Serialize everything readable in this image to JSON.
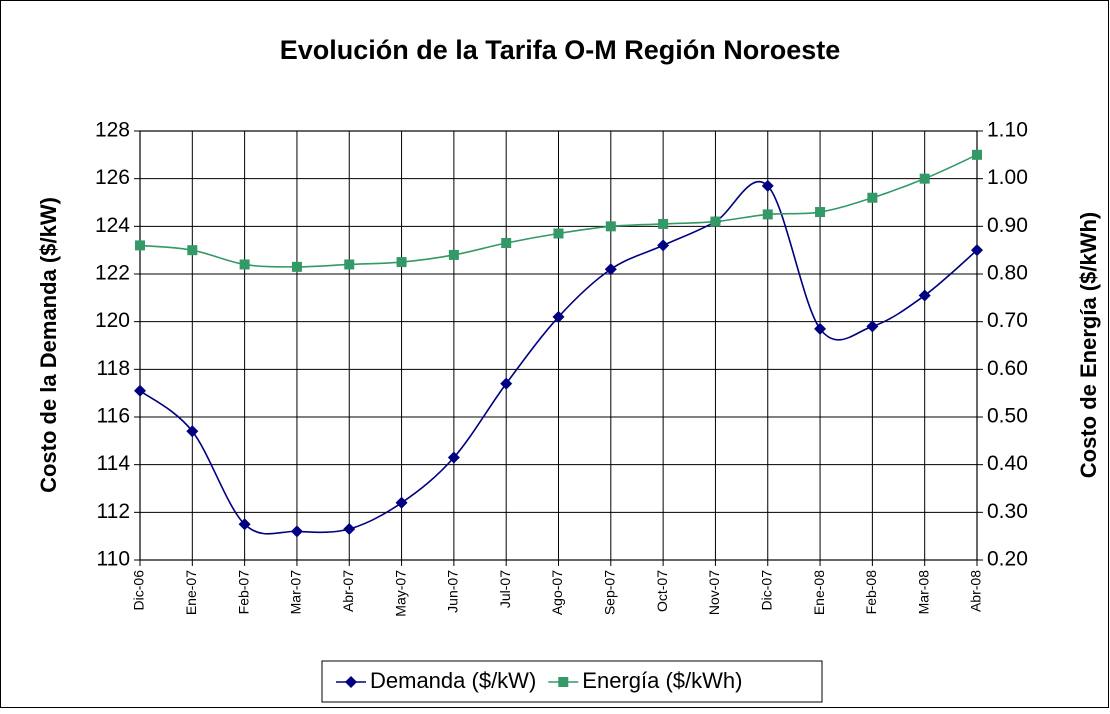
{
  "chart_data": {
    "type": "line",
    "title": "Evolución de la Tarifa O-M Región Noroeste",
    "y_label": "Costo de la Demanda ($/kW)",
    "y2_label": "Costo de Energía ($/kWh)",
    "categories": [
      "Dic-06",
      "Ene-07",
      "Feb-07",
      "Mar-07",
      "Abr-07",
      "May-07",
      "Jun-07",
      "Jul-07",
      "Ago-07",
      "Sep-07",
      "Oct-07",
      "Nov-07",
      "Dic-07",
      "Ene-08",
      "Feb-08",
      "Mar-08",
      "Abr-08"
    ],
    "series": [
      {
        "name": "Demanda ($/kW)",
        "color": "#000080",
        "marker": "diamond",
        "values": [
          117.1,
          115.4,
          111.5,
          111.2,
          111.3,
          112.4,
          114.3,
          117.4,
          120.2,
          122.2,
          123.2,
          124.2,
          125.7,
          119.7,
          119.8,
          121.1,
          123.0
        ]
      },
      {
        "name": "Energía ($/kWh)",
        "color": "#339966",
        "marker": "square",
        "axis": "y2",
        "values": [
          0.86,
          0.85,
          0.82,
          0.815,
          0.82,
          0.825,
          0.84,
          0.865,
          0.885,
          0.9,
          0.905,
          0.91,
          0.925,
          0.93,
          0.96,
          1.0,
          1.05
        ]
      }
    ],
    "ylim": [
      110,
      128
    ],
    "yticks": [
      110,
      112,
      114,
      116,
      118,
      120,
      122,
      124,
      126,
      128
    ],
    "y2lim": [
      0.2,
      1.1
    ],
    "y2ticks": [
      {
        "value": 0.2,
        "label": "0.20"
      },
      {
        "value": 0.3,
        "label": "0.30"
      },
      {
        "value": 0.4,
        "label": "0.40"
      },
      {
        "value": 0.5,
        "label": "0.50"
      },
      {
        "value": 0.6,
        "label": "0.60"
      },
      {
        "value": 0.7,
        "label": "0.70"
      },
      {
        "value": 0.8,
        "label": "0.80"
      },
      {
        "value": 0.9,
        "label": "0.90"
      },
      {
        "value": 1.0,
        "label": "1.00"
      },
      {
        "value": 1.1,
        "label": "1.10"
      }
    ],
    "grid": true,
    "legend": "bottom"
  }
}
